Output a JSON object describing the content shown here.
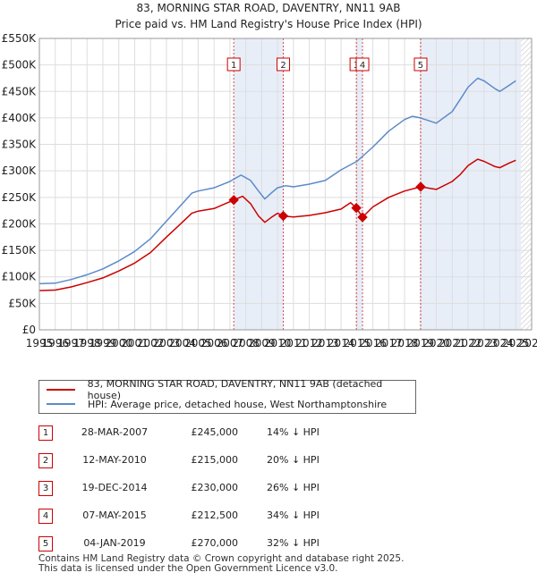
{
  "title": {
    "line1": "83, MORNING STAR ROAD, DAVENTRY, NN11 9AB",
    "line2": "Price paid vs. HM Land Registry's House Price Index (HPI)"
  },
  "legend": {
    "red_label": "83, MORNING STAR ROAD, DAVENTRY, NN11 9AB (detached house)",
    "blue_label": "HPI: Average price, detached house, West Northamptonshire"
  },
  "colors": {
    "price_line": "#cc0000",
    "hpi_line": "#5b8ac9",
    "shade": "#e8eef8",
    "marker_border": "#cc0000"
  },
  "sales": [
    {
      "num": "1",
      "date": "28-MAR-2007",
      "price": "£245,000",
      "hpi": "14% ↓ HPI"
    },
    {
      "num": "2",
      "date": "12-MAY-2010",
      "price": "£215,000",
      "hpi": "20% ↓ HPI"
    },
    {
      "num": "3",
      "date": "19-DEC-2014",
      "price": "£230,000",
      "hpi": "26% ↓ HPI"
    },
    {
      "num": "4",
      "date": "07-MAY-2015",
      "price": "£212,500",
      "hpi": "34% ↓ HPI"
    },
    {
      "num": "5",
      "date": "04-JAN-2019",
      "price": "£270,000",
      "hpi": "32% ↓ HPI"
    }
  ],
  "footer": {
    "line1": "Contains HM Land Registry data © Crown copyright and database right 2025.",
    "line2": "This data is licensed under the Open Government Licence v3.0."
  },
  "chart_data": {
    "type": "line",
    "title": "83, MORNING STAR ROAD, DAVENTRY, NN11 9AB — Price paid vs. HM Land Registry's House Price Index (HPI)",
    "xlim": [
      1995,
      2026
    ],
    "ylim": [
      0,
      550000
    ],
    "x_ticks": [
      1995,
      1996,
      1997,
      1998,
      1999,
      2000,
      2001,
      2002,
      2003,
      2004,
      2005,
      2006,
      2007,
      2008,
      2009,
      2010,
      2011,
      2012,
      2013,
      2014,
      2015,
      2016,
      2017,
      2018,
      2019,
      2020,
      2021,
      2022,
      2023,
      2024,
      2025,
      2026
    ],
    "y_ticks": [
      {
        "value": 0,
        "label": "£0"
      },
      {
        "value": 50000,
        "label": "£50K"
      },
      {
        "value": 100000,
        "label": "£100K"
      },
      {
        "value": 150000,
        "label": "£150K"
      },
      {
        "value": 200000,
        "label": "£200K"
      },
      {
        "value": 250000,
        "label": "£250K"
      },
      {
        "value": 300000,
        "label": "£300K"
      },
      {
        "value": 350000,
        "label": "£350K"
      },
      {
        "value": 400000,
        "label": "£400K"
      },
      {
        "value": 450000,
        "label": "£450K"
      },
      {
        "value": 500000,
        "label": "£500K"
      },
      {
        "value": 550000,
        "label": "£550K"
      }
    ],
    "shaded_ranges": [
      [
        2007.24,
        2010.36
      ],
      [
        2014.96,
        2015.35
      ],
      [
        2019.01,
        2025.33
      ]
    ],
    "future_hatch_start": 2025.33,
    "series": [
      {
        "name": "HPI: Average price, detached house, West Northamptonshire",
        "color": "#5b8ac9",
        "points": [
          [
            1995.0,
            87000
          ],
          [
            1996.0,
            88000
          ],
          [
            1997.0,
            95000
          ],
          [
            1998.0,
            104000
          ],
          [
            1999.0,
            115000
          ],
          [
            2000.0,
            130000
          ],
          [
            2001.0,
            148000
          ],
          [
            2002.0,
            172000
          ],
          [
            2003.0,
            205000
          ],
          [
            2004.0,
            238000
          ],
          [
            2004.6,
            258000
          ],
          [
            2005.0,
            262000
          ],
          [
            2006.0,
            268000
          ],
          [
            2007.0,
            280000
          ],
          [
            2007.7,
            292000
          ],
          [
            2008.3,
            282000
          ],
          [
            2008.8,
            262000
          ],
          [
            2009.2,
            247000
          ],
          [
            2009.6,
            258000
          ],
          [
            2010.0,
            268000
          ],
          [
            2010.5,
            272000
          ],
          [
            2011.0,
            270000
          ],
          [
            2012.0,
            275000
          ],
          [
            2013.0,
            282000
          ],
          [
            2014.0,
            302000
          ],
          [
            2015.0,
            318000
          ],
          [
            2016.0,
            345000
          ],
          [
            2017.0,
            375000
          ],
          [
            2018.0,
            397000
          ],
          [
            2018.5,
            403000
          ],
          [
            2019.0,
            400000
          ],
          [
            2020.0,
            390000
          ],
          [
            2021.0,
            412000
          ],
          [
            2021.5,
            435000
          ],
          [
            2022.0,
            458000
          ],
          [
            2022.6,
            475000
          ],
          [
            2023.0,
            470000
          ],
          [
            2023.7,
            455000
          ],
          [
            2024.0,
            450000
          ],
          [
            2024.6,
            462000
          ],
          [
            2025.0,
            470000
          ]
        ]
      },
      {
        "name": "83, MORNING STAR ROAD, DAVENTRY, NN11 9AB (detached house)",
        "color": "#cc0000",
        "points": [
          [
            1995.0,
            74000
          ],
          [
            1996.0,
            75000
          ],
          [
            1997.0,
            81000
          ],
          [
            1998.0,
            89000
          ],
          [
            1999.0,
            98000
          ],
          [
            2000.0,
            111000
          ],
          [
            2001.0,
            126000
          ],
          [
            2002.0,
            146000
          ],
          [
            2003.0,
            175000
          ],
          [
            2004.0,
            203000
          ],
          [
            2004.6,
            220000
          ],
          [
            2005.0,
            224000
          ],
          [
            2006.0,
            229000
          ],
          [
            2007.24,
            245000
          ],
          [
            2007.8,
            252000
          ],
          [
            2008.3,
            238000
          ],
          [
            2008.8,
            215000
          ],
          [
            2009.2,
            203000
          ],
          [
            2009.6,
            212000
          ],
          [
            2010.0,
            220000
          ],
          [
            2010.36,
            215000
          ],
          [
            2011.0,
            213000
          ],
          [
            2012.0,
            216000
          ],
          [
            2013.0,
            221000
          ],
          [
            2014.0,
            228000
          ],
          [
            2014.6,
            240000
          ],
          [
            2014.96,
            230000
          ],
          [
            2015.35,
            212500
          ],
          [
            2016.0,
            232000
          ],
          [
            2017.0,
            250000
          ],
          [
            2018.0,
            262000
          ],
          [
            2019.01,
            270000
          ],
          [
            2020.0,
            265000
          ],
          [
            2021.0,
            280000
          ],
          [
            2021.5,
            293000
          ],
          [
            2022.0,
            310000
          ],
          [
            2022.6,
            322000
          ],
          [
            2023.0,
            318000
          ],
          [
            2023.7,
            308000
          ],
          [
            2024.0,
            306000
          ],
          [
            2024.6,
            315000
          ],
          [
            2025.0,
            320000
          ]
        ]
      }
    ],
    "sale_markers": [
      {
        "num": "1",
        "x": 2007.24,
        "y": 245000
      },
      {
        "num": "2",
        "x": 2010.36,
        "y": 215000
      },
      {
        "num": "3",
        "x": 2014.96,
        "y": 230000
      },
      {
        "num": "4",
        "x": 2015.35,
        "y": 212500
      },
      {
        "num": "5",
        "x": 2019.01,
        "y": 270000
      }
    ]
  }
}
